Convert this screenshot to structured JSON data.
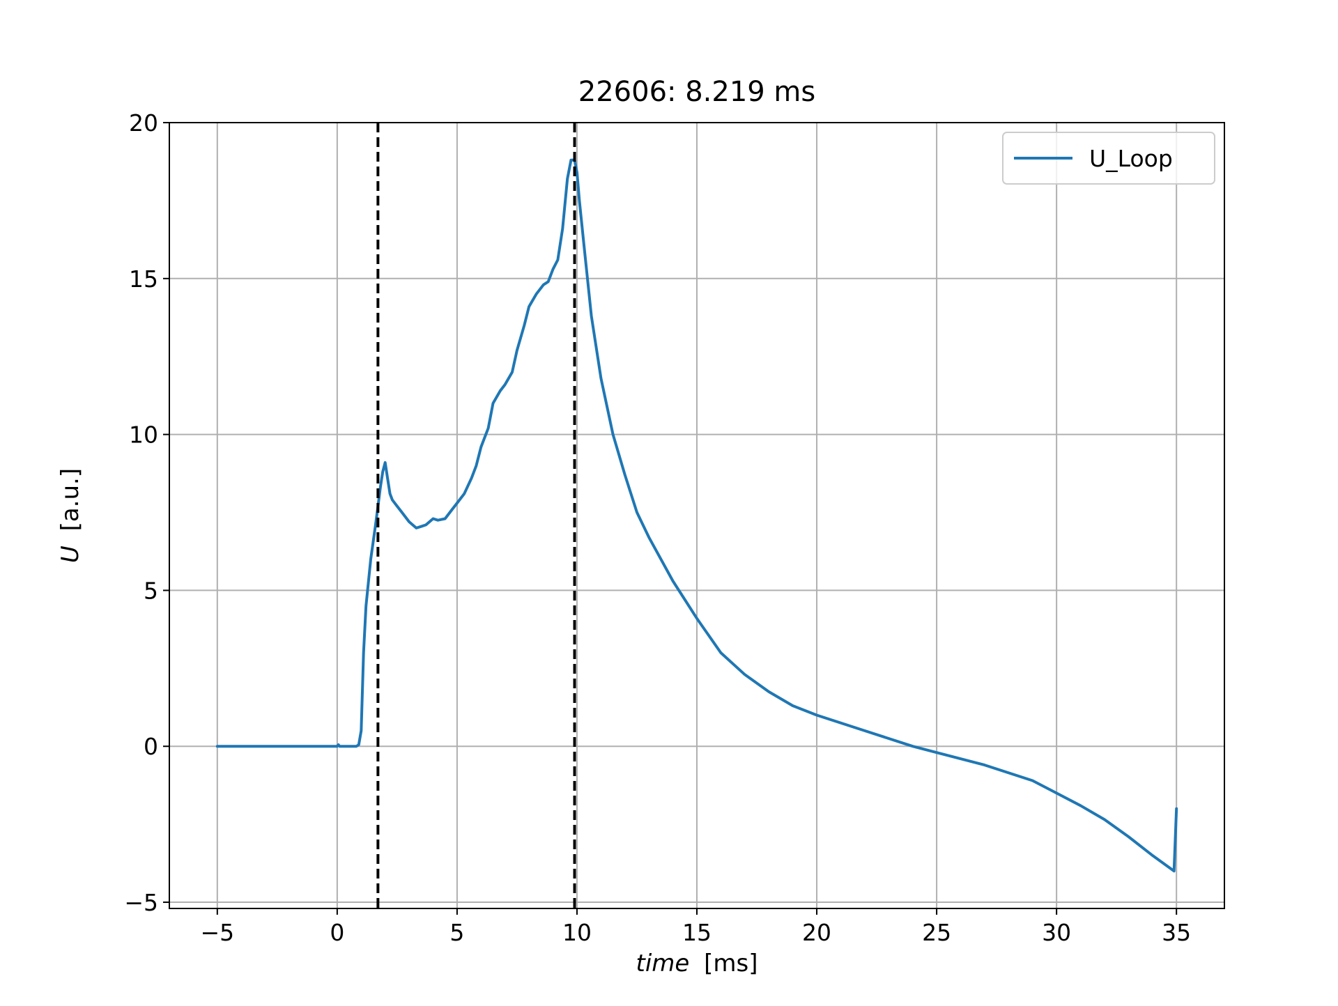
{
  "chart_data": {
    "type": "line",
    "title": "22606: 8.219 ms",
    "xlabel_var": "time",
    "xlabel_unit": "[ms]",
    "ylabel_var": "U",
    "ylabel_unit": "[a.u.]",
    "xlim": [
      -7,
      37
    ],
    "ylim": [
      -5.2,
      20
    ],
    "xticks": [
      -5,
      0,
      5,
      10,
      15,
      20,
      25,
      30,
      35
    ],
    "yticks": [
      -5,
      0,
      5,
      10,
      15,
      20
    ],
    "xtick_labels": [
      "−5",
      "0",
      "5",
      "10",
      "15",
      "20",
      "25",
      "30",
      "35"
    ],
    "ytick_labels": [
      "−5",
      "0",
      "5",
      "10",
      "15",
      "20"
    ],
    "grid": true,
    "legend_position": "top-right",
    "vlines": [
      {
        "x": 1.7,
        "style": "dashed",
        "color": "#000000"
      },
      {
        "x": 9.9,
        "style": "dashed",
        "color": "#000000"
      }
    ],
    "series": [
      {
        "name": "U_Loop",
        "color": "#1f77b4",
        "x": [
          -5,
          -1,
          0,
          0.05,
          0.1,
          0.2,
          0.5,
          0.8,
          0.9,
          1.0,
          1.1,
          1.2,
          1.4,
          1.6,
          1.7,
          1.8,
          1.9,
          2.0,
          2.1,
          2.2,
          2.3,
          2.4,
          2.5,
          2.7,
          3.0,
          3.3,
          3.5,
          3.7,
          4.0,
          4.2,
          4.5,
          4.8,
          5.0,
          5.3,
          5.6,
          5.8,
          6.0,
          6.3,
          6.5,
          6.8,
          7.0,
          7.3,
          7.5,
          7.8,
          8.0,
          8.3,
          8.6,
          8.8,
          9.0,
          9.2,
          9.4,
          9.6,
          9.75,
          9.9,
          10.0,
          10.1,
          10.3,
          10.6,
          11.0,
          11.5,
          12.0,
          12.5,
          13.0,
          14.0,
          15.0,
          16.0,
          17.0,
          18.0,
          19.0,
          20.0,
          22.0,
          24.0,
          25.0,
          27.0,
          29.0,
          30.0,
          31.0,
          32.0,
          33.0,
          34.0,
          34.9,
          35.0
        ],
        "y": [
          0,
          0,
          0,
          0.05,
          0,
          0,
          0,
          0,
          0.05,
          0.5,
          3.0,
          4.5,
          6.0,
          7.1,
          7.7,
          8.3,
          8.8,
          9.1,
          8.6,
          8.1,
          7.9,
          7.8,
          7.7,
          7.5,
          7.2,
          7.0,
          7.05,
          7.1,
          7.3,
          7.25,
          7.3,
          7.6,
          7.8,
          8.1,
          8.6,
          9.0,
          9.6,
          10.2,
          11.0,
          11.4,
          11.6,
          12.0,
          12.7,
          13.5,
          14.1,
          14.5,
          14.8,
          14.9,
          15.3,
          15.6,
          16.6,
          18.2,
          18.8,
          18.8,
          18.4,
          17.5,
          16.0,
          13.8,
          11.8,
          10.0,
          8.7,
          7.5,
          6.7,
          5.3,
          4.1,
          3.0,
          2.3,
          1.75,
          1.3,
          1.0,
          0.5,
          0.0,
          -0.2,
          -0.6,
          -1.1,
          -1.5,
          -1.9,
          -2.35,
          -2.9,
          -3.5,
          -4.0,
          -2.0
        ]
      }
    ]
  }
}
